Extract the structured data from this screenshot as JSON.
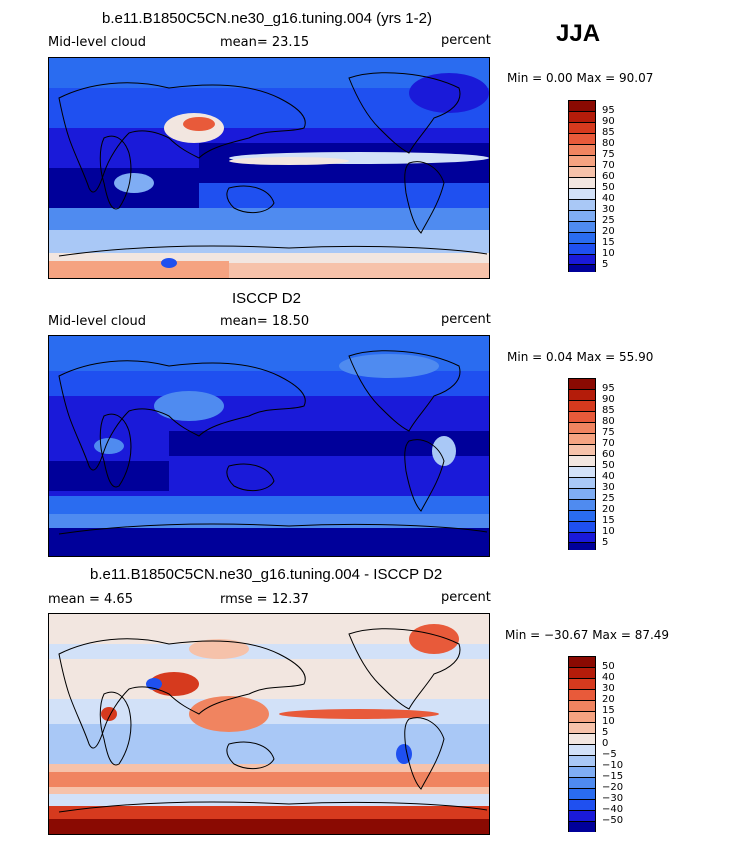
{
  "season": "JJA",
  "palette_seq": [
    "#00009a",
    "#1a1ad9",
    "#1f50f0",
    "#2a6cf0",
    "#4f8bf0",
    "#7fadf4",
    "#a9c8f6",
    "#d2e1f8",
    "#f2e6e0",
    "#f6c2aa",
    "#f5a381",
    "#f08460",
    "#e85a3a",
    "#d63a1e",
    "#b41c0a",
    "#8a0a02"
  ],
  "palette_div": [
    "#00009a",
    "#1a1ad9",
    "#1f50f0",
    "#2a6cf0",
    "#4f8bf0",
    "#7fadf4",
    "#a9c8f6",
    "#d2e1f8",
    "#f2e6e0",
    "#f6c2aa",
    "#f5a381",
    "#f08460",
    "#e85a3a",
    "#d63a1e",
    "#b41c0a",
    "#8a0a02"
  ],
  "panels": [
    {
      "title": "b.e11.B1850C5CN.ne30_g16.tuning.004 (yrs 1-2)",
      "left_label": "Mid-level cloud",
      "center_label": "mean=  23.15",
      "right_label": "percent",
      "minmax": "Min =   0.00 Max =  90.07",
      "colorbar_ticks": [
        "95",
        "90",
        "85",
        "80",
        "75",
        "70",
        "60",
        "50",
        "40",
        "30",
        "25",
        "20",
        "15",
        "10",
        "5"
      ]
    },
    {
      "title": "ISCCP D2",
      "left_label": "Mid-level cloud",
      "center_label": "mean=  18.50",
      "right_label": "percent",
      "minmax": "Min =   0.04 Max =  55.90",
      "colorbar_ticks": [
        "95",
        "90",
        "85",
        "80",
        "75",
        "70",
        "60",
        "50",
        "40",
        "30",
        "25",
        "20",
        "15",
        "10",
        "5"
      ]
    },
    {
      "title": "b.e11.B1850C5CN.ne30_g16.tuning.004 - ISCCP D2",
      "left_label": "mean =   4.65",
      "center_label": "rmse =  12.37",
      "right_label": "percent",
      "minmax": "Min = −30.67 Max =  87.49",
      "colorbar_ticks": [
        "50",
        "40",
        "30",
        "20",
        "15",
        "10",
        "5",
        "0",
        "−5",
        "−10",
        "−15",
        "−20",
        "−30",
        "−40",
        "−50"
      ]
    }
  ]
}
